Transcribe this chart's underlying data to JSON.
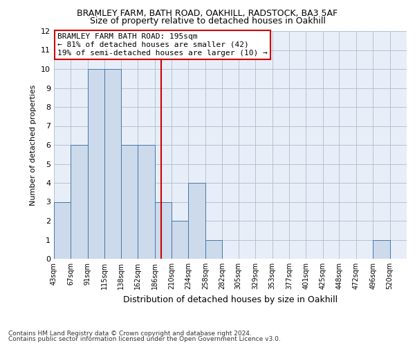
{
  "title1": "BRAMLEY FARM, BATH ROAD, OAKHILL, RADSTOCK, BA3 5AF",
  "title2": "Size of property relative to detached houses in Oakhill",
  "xlabel": "Distribution of detached houses by size in Oakhill",
  "ylabel": "Number of detached properties",
  "footnote1": "Contains HM Land Registry data © Crown copyright and database right 2024.",
  "footnote2": "Contains public sector information licensed under the Open Government Licence v3.0.",
  "annotation_line1": "BRAMLEY FARM BATH ROAD: 195sqm",
  "annotation_line2": "← 81% of detached houses are smaller (42)",
  "annotation_line3": "19% of semi-detached houses are larger (10) →",
  "bar_edges": [
    43,
    67,
    91,
    115,
    138,
    162,
    186,
    210,
    234,
    258,
    282,
    305,
    329,
    353,
    377,
    401,
    425,
    448,
    472,
    496,
    520
  ],
  "bar_heights": [
    3,
    6,
    10,
    10,
    6,
    6,
    3,
    2,
    4,
    1,
    0,
    0,
    0,
    0,
    0,
    0,
    0,
    0,
    0,
    1
  ],
  "reference_line_x": 195,
  "bar_color": "#ccdaeb",
  "bar_edgecolor": "#4477aa",
  "ref_line_color": "#cc0000",
  "annotation_box_edgecolor": "#cc0000",
  "grid_color": "#aabbcc",
  "background_color": "#e8eef8",
  "ylim": [
    0,
    12
  ],
  "yticks": [
    0,
    1,
    2,
    3,
    4,
    5,
    6,
    7,
    8,
    9,
    10,
    11,
    12
  ]
}
